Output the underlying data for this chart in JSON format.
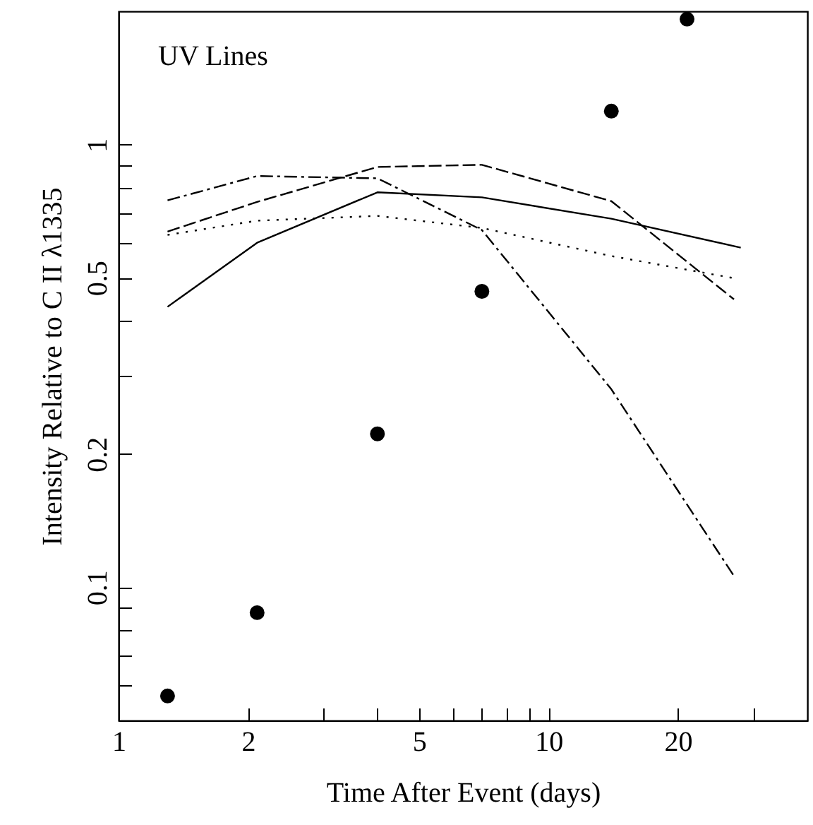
{
  "chart_data": {
    "type": "line",
    "xlabel": "Time After Event (days)",
    "ylabel": "Intensity Relative to C II λ1335",
    "annotations": [
      "UV Lines"
    ],
    "log": "xy",
    "grid": false,
    "xlim": [
      1,
      40
    ],
    "ylim": [
      0.05,
      2
    ],
    "xticks": [
      1,
      2,
      {
        "value": 3,
        "label": null
      },
      {
        "value": 4,
        "label": null
      },
      5,
      {
        "value": 6,
        "label": null
      },
      {
        "value": 7,
        "label": null
      },
      {
        "value": 8,
        "label": null
      },
      {
        "value": 9,
        "label": null
      },
      10,
      20,
      {
        "value": 30,
        "label": null
      }
    ],
    "yticks": [
      {
        "value": 0.06,
        "label": null
      },
      {
        "value": 0.07,
        "label": null
      },
      {
        "value": 0.08,
        "label": null
      },
      {
        "value": 0.09,
        "label": null
      },
      0.1,
      0.2,
      {
        "value": 0.3,
        "label": null
      },
      {
        "value": 0.4,
        "label": null
      },
      0.5,
      {
        "value": 0.6,
        "label": null
      },
      {
        "value": 0.7,
        "label": null
      },
      {
        "value": 0.8,
        "label": null
      },
      {
        "value": 0.9,
        "label": null
      },
      1
    ],
    "series": [
      {
        "line_style": "solid",
        "color": "#000000",
        "x": [
          1.3,
          2.1,
          4,
          7,
          14,
          28
        ],
        "values": [
          0.43,
          0.6,
          0.78,
          0.76,
          0.68,
          0.585
        ]
      },
      {
        "line_style": "dashed",
        "color": "#000000",
        "x": [
          1.3,
          2.1,
          4,
          7,
          14,
          27
        ],
        "values": [
          0.636,
          0.742,
          0.89,
          0.9,
          0.745,
          0.447
        ]
      },
      {
        "line_style": "dashdot",
        "color": "#000000",
        "x": [
          1.3,
          2.1,
          4,
          7,
          14,
          27
        ],
        "values": [
          0.748,
          0.849,
          0.839,
          0.641,
          0.28,
          0.106
        ]
      },
      {
        "line_style": "dotted",
        "color": "#000000",
        "x": [
          1.3,
          2.1,
          4,
          7,
          14,
          27
        ],
        "values": [
          0.625,
          0.673,
          0.69,
          0.648,
          0.56,
          0.499
        ]
      },
      {
        "type": "scatter",
        "marker": "circle",
        "color": "#000000",
        "x": [
          1.3,
          2.1,
          4,
          7,
          14,
          21
        ],
        "values": [
          0.0568,
          0.0876,
          0.222,
          0.466,
          1.19,
          1.92
        ]
      }
    ]
  }
}
